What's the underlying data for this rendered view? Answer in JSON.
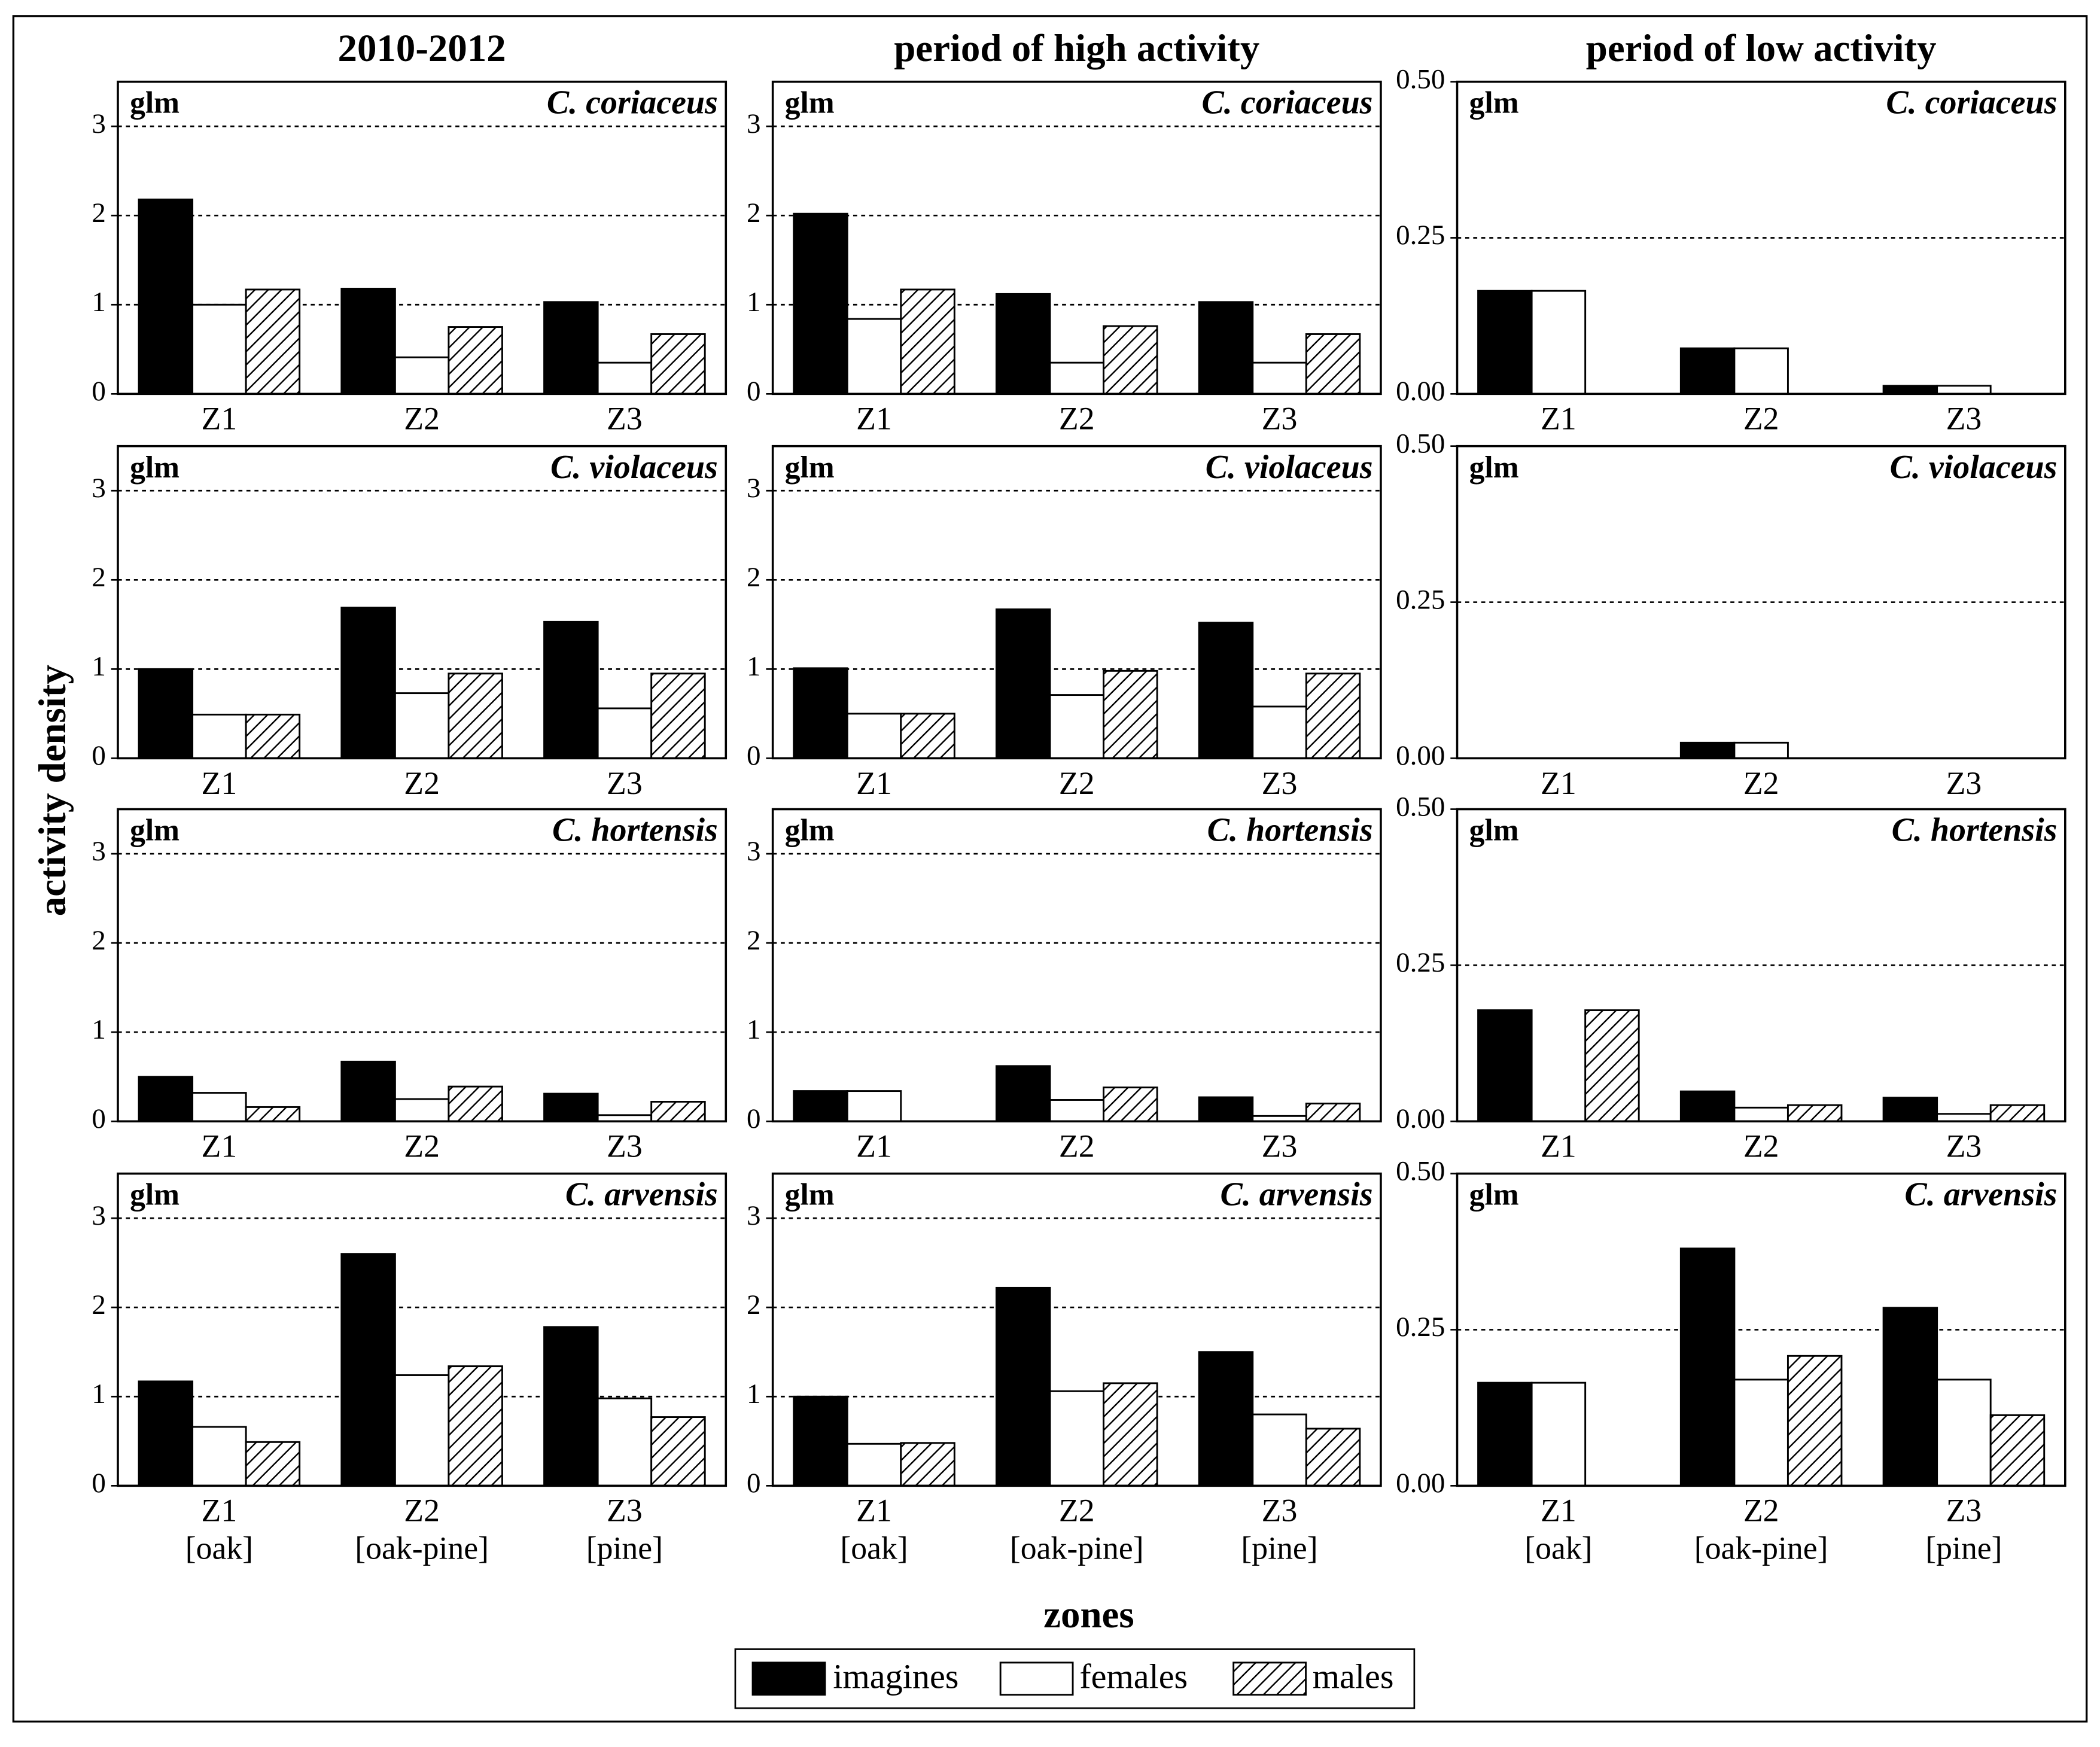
{
  "y_label": "activity density",
  "x_label": "zones",
  "chart_data": [
    {
      "type": "bar",
      "title": "2010-2012",
      "model": "glm",
      "species": "C. coriaceus",
      "categories": [
        "Z1",
        "Z2",
        "Z3"
      ],
      "ylim": [
        0,
        3.5
      ],
      "yticks": [
        0,
        1,
        2,
        3
      ],
      "grid": true,
      "series": [
        {
          "name": "imagines",
          "color": "#000000",
          "values": [
            2.18,
            1.18,
            1.03
          ]
        },
        {
          "name": "females",
          "color": "#ffffff",
          "values": [
            1.0,
            0.41,
            0.35
          ]
        },
        {
          "name": "males",
          "color": "#000000",
          "pattern": "hatch",
          "values": [
            1.17,
            0.75,
            0.67
          ]
        }
      ]
    },
    {
      "type": "bar",
      "title": "period of high activity",
      "model": "glm",
      "species": "C. coriaceus",
      "categories": [
        "Z1",
        "Z2",
        "Z3"
      ],
      "ylim": [
        0,
        3.5
      ],
      "yticks": [
        0,
        1,
        2,
        3
      ],
      "grid": true,
      "series": [
        {
          "name": "imagines",
          "color": "#000000",
          "values": [
            2.02,
            1.12,
            1.03
          ]
        },
        {
          "name": "females",
          "color": "#ffffff",
          "values": [
            0.84,
            0.35,
            0.35
          ]
        },
        {
          "name": "males",
          "color": "#000000",
          "pattern": "hatch",
          "values": [
            1.17,
            0.76,
            0.67
          ]
        }
      ]
    },
    {
      "type": "bar",
      "title": "period of low activity",
      "model": "glm",
      "species": "C. coriaceus",
      "categories": [
        "Z1",
        "Z2",
        "Z3"
      ],
      "ylim": [
        0,
        0.5
      ],
      "yticks": [
        {
          "value": 0,
          "label": "0.00"
        },
        {
          "value": 0.25,
          "label": "0.25"
        },
        {
          "value": 0.5,
          "label": "0.50"
        }
      ],
      "grid": true,
      "series": [
        {
          "name": "imagines",
          "color": "#000000",
          "values": [
            0.165,
            0.073,
            0.013
          ]
        },
        {
          "name": "females",
          "color": "#ffffff",
          "values": [
            0.165,
            0.073,
            0.013
          ]
        },
        {
          "name": "males",
          "color": "#000000",
          "pattern": "hatch",
          "values": [
            0,
            0,
            0
          ]
        }
      ]
    },
    {
      "type": "bar",
      "model": "glm",
      "species": "C. violaceus",
      "categories": [
        "Z1",
        "Z2",
        "Z3"
      ],
      "ylim": [
        0,
        3.5
      ],
      "yticks": [
        0,
        1,
        2,
        3
      ],
      "grid": true,
      "series": [
        {
          "name": "imagines",
          "color": "#000000",
          "values": [
            1.0,
            1.69,
            1.53
          ]
        },
        {
          "name": "females",
          "color": "#ffffff",
          "values": [
            0.49,
            0.73,
            0.56
          ]
        },
        {
          "name": "males",
          "color": "#000000",
          "pattern": "hatch",
          "values": [
            0.49,
            0.95,
            0.95
          ]
        }
      ]
    },
    {
      "type": "bar",
      "model": "glm",
      "species": "C. violaceus",
      "categories": [
        "Z1",
        "Z2",
        "Z3"
      ],
      "ylim": [
        0,
        3.5
      ],
      "yticks": [
        0,
        1,
        2,
        3
      ],
      "grid": true,
      "series": [
        {
          "name": "imagines",
          "color": "#000000",
          "values": [
            1.01,
            1.67,
            1.52
          ]
        },
        {
          "name": "females",
          "color": "#ffffff",
          "values": [
            0.5,
            0.71,
            0.58
          ]
        },
        {
          "name": "males",
          "color": "#000000",
          "pattern": "hatch",
          "values": [
            0.5,
            0.98,
            0.95
          ]
        }
      ]
    },
    {
      "type": "bar",
      "model": "glm",
      "species": "C. violaceus",
      "categories": [
        "Z1",
        "Z2",
        "Z3"
      ],
      "ylim": [
        0,
        0.5
      ],
      "yticks": [
        {
          "value": 0,
          "label": "0.00"
        },
        {
          "value": 0.25,
          "label": "0.25"
        },
        {
          "value": 0.5,
          "label": "0.50"
        }
      ],
      "grid": true,
      "series": [
        {
          "name": "imagines",
          "color": "#000000",
          "values": [
            0,
            0.025,
            0
          ]
        },
        {
          "name": "females",
          "color": "#ffffff",
          "values": [
            0,
            0.025,
            0
          ]
        },
        {
          "name": "males",
          "color": "#000000",
          "pattern": "hatch",
          "values": [
            0,
            0,
            0
          ]
        }
      ]
    },
    {
      "type": "bar",
      "model": "glm",
      "species": "C. hortensis",
      "categories": [
        "Z1",
        "Z2",
        "Z3"
      ],
      "ylim": [
        0,
        3.5
      ],
      "yticks": [
        0,
        1,
        2,
        3
      ],
      "grid": true,
      "series": [
        {
          "name": "imagines",
          "color": "#000000",
          "values": [
            0.5,
            0.67,
            0.31
          ]
        },
        {
          "name": "females",
          "color": "#ffffff",
          "values": [
            0.32,
            0.25,
            0.07
          ]
        },
        {
          "name": "males",
          "color": "#000000",
          "pattern": "hatch",
          "values": [
            0.16,
            0.39,
            0.22
          ]
        }
      ]
    },
    {
      "type": "bar",
      "model": "glm",
      "species": "C. hortensis",
      "categories": [
        "Z1",
        "Z2",
        "Z3"
      ],
      "ylim": [
        0,
        3.5
      ],
      "yticks": [
        0,
        1,
        2,
        3
      ],
      "grid": true,
      "series": [
        {
          "name": "imagines",
          "color": "#000000",
          "values": [
            0.34,
            0.62,
            0.27
          ]
        },
        {
          "name": "females",
          "color": "#ffffff",
          "values": [
            0.34,
            0.24,
            0.06
          ]
        },
        {
          "name": "males",
          "color": "#000000",
          "pattern": "hatch",
          "values": [
            0,
            0.38,
            0.2
          ]
        }
      ]
    },
    {
      "type": "bar",
      "model": "glm",
      "species": "C. hortensis",
      "categories": [
        "Z1",
        "Z2",
        "Z3"
      ],
      "ylim": [
        0,
        0.5
      ],
      "yticks": [
        {
          "value": 0,
          "label": "0.00"
        },
        {
          "value": 0.25,
          "label": "0.25"
        },
        {
          "value": 0.5,
          "label": "0.50"
        }
      ],
      "grid": true,
      "series": [
        {
          "name": "imagines",
          "color": "#000000",
          "values": [
            0.178,
            0.048,
            0.038
          ]
        },
        {
          "name": "females",
          "color": "#ffffff",
          "values": [
            0,
            0.022,
            0.012
          ]
        },
        {
          "name": "males",
          "color": "#000000",
          "pattern": "hatch",
          "values": [
            0.178,
            0.026,
            0.026
          ]
        }
      ]
    },
    {
      "type": "bar",
      "model": "glm",
      "species": "C. arvensis",
      "categories": [
        "Z1",
        "Z2",
        "Z3"
      ],
      "category_sublabels": [
        "[oak]",
        "[oak-pine]",
        "[pine]"
      ],
      "ylim": [
        0,
        3.5
      ],
      "yticks": [
        0,
        1,
        2,
        3
      ],
      "grid": true,
      "series": [
        {
          "name": "imagines",
          "color": "#000000",
          "values": [
            1.17,
            2.6,
            1.78
          ]
        },
        {
          "name": "females",
          "color": "#ffffff",
          "values": [
            0.66,
            1.24,
            0.98
          ]
        },
        {
          "name": "males",
          "color": "#000000",
          "pattern": "hatch",
          "values": [
            0.49,
            1.34,
            0.77
          ]
        }
      ]
    },
    {
      "type": "bar",
      "model": "glm",
      "species": "C. arvensis",
      "categories": [
        "Z1",
        "Z2",
        "Z3"
      ],
      "category_sublabels": [
        "[oak]",
        "[oak-pine]",
        "[pine]"
      ],
      "ylim": [
        0,
        3.5
      ],
      "yticks": [
        0,
        1,
        2,
        3
      ],
      "grid": true,
      "series": [
        {
          "name": "imagines",
          "color": "#000000",
          "values": [
            1.0,
            2.22,
            1.5
          ]
        },
        {
          "name": "females",
          "color": "#ffffff",
          "values": [
            0.47,
            1.06,
            0.8
          ]
        },
        {
          "name": "males",
          "color": "#000000",
          "pattern": "hatch",
          "values": [
            0.48,
            1.15,
            0.64
          ]
        }
      ]
    },
    {
      "type": "bar",
      "model": "glm",
      "species": "C. arvensis",
      "categories": [
        "Z1",
        "Z2",
        "Z3"
      ],
      "category_sublabels": [
        "[oak]",
        "[oak-pine]",
        "[pine]"
      ],
      "ylim": [
        0,
        0.5
      ],
      "yticks": [
        {
          "value": 0,
          "label": "0.00"
        },
        {
          "value": 0.25,
          "label": "0.25"
        },
        {
          "value": 0.5,
          "label": "0.50"
        }
      ],
      "grid": true,
      "series": [
        {
          "name": "imagines",
          "color": "#000000",
          "values": [
            0.165,
            0.38,
            0.285
          ]
        },
        {
          "name": "females",
          "color": "#ffffff",
          "values": [
            0.165,
            0.17,
            0.17
          ]
        },
        {
          "name": "males",
          "color": "#000000",
          "pattern": "hatch",
          "values": [
            0,
            0.208,
            0.113
          ]
        }
      ]
    }
  ]
}
